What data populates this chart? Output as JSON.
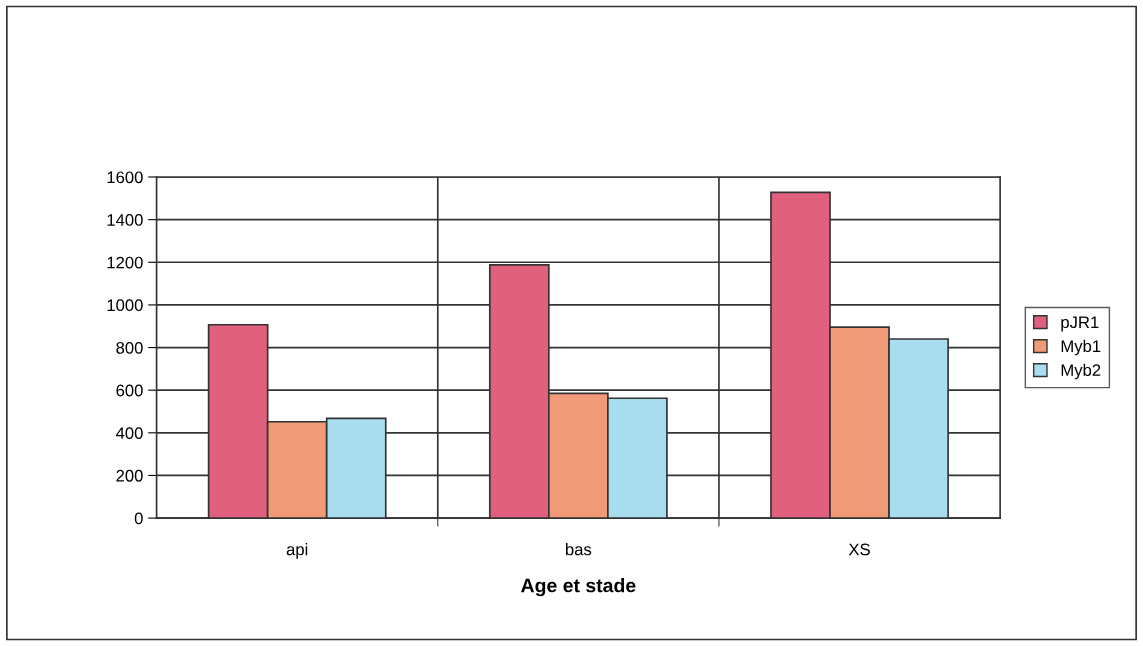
{
  "chart_data": {
    "type": "bar",
    "xlabel": "Age et stade",
    "categories": [
      "api",
      "bas",
      "XS"
    ],
    "series": [
      {
        "name": "pJR1",
        "color": "#e0607e",
        "values": [
          907,
          1188,
          1528
        ]
      },
      {
        "name": "Myb1",
        "color": "#f09a78",
        "values": [
          452,
          585,
          896
        ]
      },
      {
        "name": "Myb2",
        "color": "#a8dcef",
        "values": [
          468,
          562,
          840
        ]
      }
    ],
    "ylim": [
      0,
      1600
    ],
    "yticks": [
      0,
      200,
      400,
      600,
      800,
      1000,
      1200,
      1400,
      1600
    ],
    "grid": true,
    "legend": "right"
  }
}
